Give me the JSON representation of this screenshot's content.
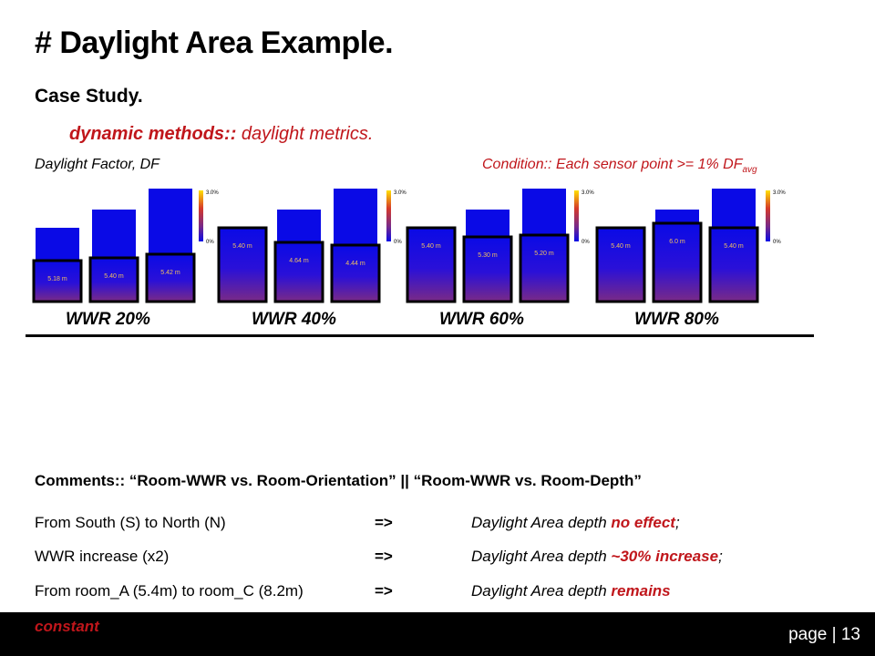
{
  "title": "# Daylight Area Example.",
  "subtitle": "Case Study.",
  "dynamic_emph": "dynamic methods::",
  "dynamic_rest": " daylight metrics.",
  "df_label": "Daylight Factor, DF",
  "condition_main": "Condition:: Each sensor point >= 1% DF",
  "condition_sub": "avg",
  "colors": {
    "accent_red": "#c0161b",
    "room_blue": "#0a0ae6",
    "floor_purple": "#7a2a86"
  },
  "groups": [
    {
      "label": "WWR 20%",
      "rooms": [
        "5.18 m",
        "5.40 m",
        "5.42 m"
      ],
      "legend_max": "3.0%",
      "legend_min": "0%"
    },
    {
      "label": "WWR 40%",
      "rooms": [
        "5.40 m",
        "4.64 m",
        "4.44 m"
      ],
      "legend_max": "3.0%",
      "legend_min": "0%"
    },
    {
      "label": "WWR 60%",
      "rooms": [
        "5.40 m",
        "5.30 m",
        "5.20 m"
      ],
      "legend_max": "3.0%",
      "legend_min": "0%"
    },
    {
      "label": "WWR 80%",
      "rooms": [
        "5.40 m",
        "6.0 m",
        "5.40 m"
      ],
      "legend_max": "3.0%",
      "legend_min": "0%"
    }
  ],
  "comments_heading": "Comments:: “Room-WWR vs. Room-Orientation” || “Room-WWR vs. Room-Depth”",
  "comments": [
    {
      "left": "From South (S) to North (N)",
      "arrow": "=>",
      "right_pre": "Daylight Area depth ",
      "right_hl": "no effect",
      "right_post": ";"
    },
    {
      "left": "WWR increase (x2)",
      "arrow": "=>",
      "right_pre": "Daylight Area depth ",
      "right_hl": "~30% increase",
      "right_post": ";"
    },
    {
      "left": "From room_A (5.4m) to room_C (8.2m)",
      "arrow": "=>",
      "right_pre": "Daylight Area depth ",
      "right_hl": "remains",
      "right_post": ""
    }
  ],
  "constant_word": "constant",
  "page_label": "page | 13"
}
